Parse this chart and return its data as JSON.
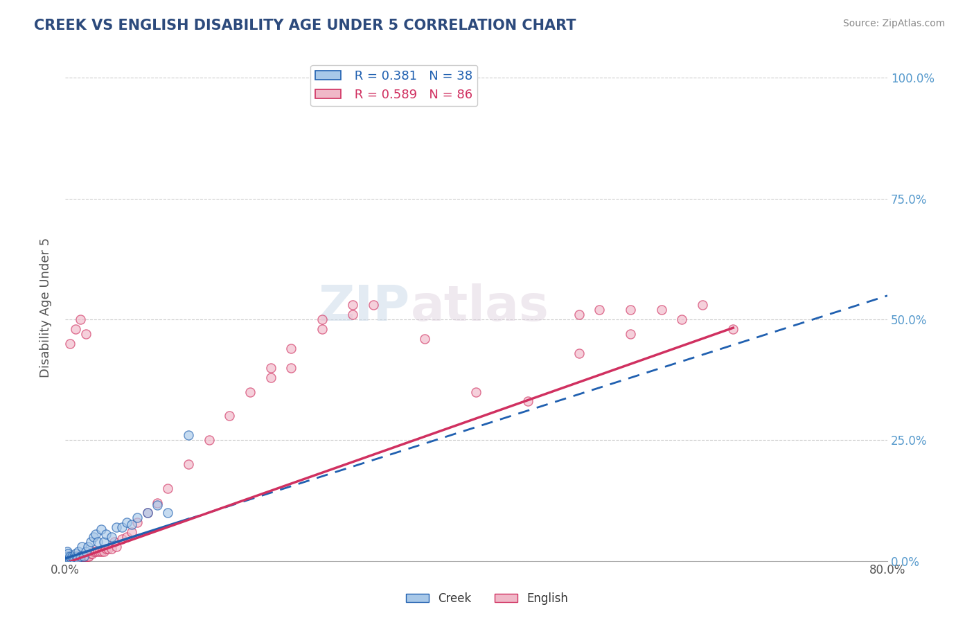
{
  "title": "CREEK VS ENGLISH DISABILITY AGE UNDER 5 CORRELATION CHART",
  "source": "Source: ZipAtlas.com",
  "ylabel": "Disability Age Under 5",
  "creek_R": 0.381,
  "creek_N": 38,
  "english_R": 0.589,
  "english_N": 86,
  "creek_color": "#a8c8e8",
  "creek_line_color": "#2060b0",
  "english_color": "#f0b8c8",
  "english_line_color": "#d03060",
  "title_color": "#2c4a7c",
  "watermark_zip": "ZIP",
  "watermark_atlas": "atlas",
  "creek_scatter_x": [
    0.001,
    0.001,
    0.002,
    0.002,
    0.003,
    0.003,
    0.004,
    0.005,
    0.006,
    0.007,
    0.008,
    0.009,
    0.01,
    0.011,
    0.012,
    0.013,
    0.015,
    0.016,
    0.018,
    0.02,
    0.022,
    0.025,
    0.028,
    0.03,
    0.032,
    0.035,
    0.038,
    0.04,
    0.045,
    0.05,
    0.055,
    0.06,
    0.065,
    0.07,
    0.08,
    0.09,
    0.1,
    0.12
  ],
  "creek_scatter_y": [
    0.005,
    0.01,
    0.005,
    0.02,
    0.01,
    0.015,
    0.005,
    0.01,
    0.005,
    0.01,
    0.005,
    0.01,
    0.015,
    0.01,
    0.005,
    0.02,
    0.01,
    0.03,
    0.01,
    0.02,
    0.03,
    0.04,
    0.05,
    0.055,
    0.04,
    0.065,
    0.04,
    0.055,
    0.05,
    0.07,
    0.07,
    0.08,
    0.075,
    0.09,
    0.1,
    0.115,
    0.1,
    0.26
  ],
  "english_scatter_x": [
    0.001,
    0.001,
    0.002,
    0.002,
    0.002,
    0.003,
    0.003,
    0.003,
    0.004,
    0.004,
    0.005,
    0.005,
    0.005,
    0.006,
    0.006,
    0.007,
    0.007,
    0.008,
    0.008,
    0.009,
    0.009,
    0.01,
    0.01,
    0.011,
    0.012,
    0.013,
    0.014,
    0.015,
    0.016,
    0.017,
    0.018,
    0.019,
    0.02,
    0.021,
    0.022,
    0.023,
    0.025,
    0.026,
    0.028,
    0.03,
    0.032,
    0.034,
    0.036,
    0.038,
    0.04,
    0.042,
    0.045,
    0.048,
    0.05,
    0.055,
    0.06,
    0.065,
    0.07,
    0.08,
    0.09,
    0.1,
    0.12,
    0.14,
    0.16,
    0.18,
    0.2,
    0.22,
    0.25,
    0.28,
    0.3,
    0.35,
    0.4,
    0.45,
    0.5,
    0.55,
    0.2,
    0.22,
    0.25,
    0.28,
    0.003,
    0.005,
    0.01,
    0.015,
    0.02,
    0.5,
    0.55,
    0.6,
    0.65,
    0.62,
    0.58,
    0.52
  ],
  "english_scatter_y": [
    0.005,
    0.01,
    0.005,
    0.01,
    0.005,
    0.005,
    0.01,
    0.005,
    0.005,
    0.01,
    0.005,
    0.01,
    0.005,
    0.01,
    0.005,
    0.01,
    0.005,
    0.01,
    0.005,
    0.01,
    0.005,
    0.01,
    0.005,
    0.01,
    0.01,
    0.01,
    0.01,
    0.01,
    0.01,
    0.01,
    0.01,
    0.01,
    0.01,
    0.01,
    0.01,
    0.01,
    0.015,
    0.015,
    0.02,
    0.02,
    0.02,
    0.02,
    0.02,
    0.02,
    0.025,
    0.025,
    0.025,
    0.04,
    0.03,
    0.045,
    0.05,
    0.06,
    0.08,
    0.1,
    0.12,
    0.15,
    0.2,
    0.25,
    0.3,
    0.35,
    0.4,
    0.44,
    0.48,
    0.51,
    0.53,
    0.46,
    0.35,
    0.33,
    0.43,
    0.47,
    0.38,
    0.4,
    0.5,
    0.53,
    0.005,
    0.45,
    0.48,
    0.5,
    0.47,
    0.51,
    0.52,
    0.5,
    0.48,
    0.53,
    0.52,
    0.52
  ],
  "xlim": [
    0.0,
    0.8
  ],
  "ylim": [
    0.0,
    1.05
  ],
  "ytick_vals": [
    0.0,
    0.25,
    0.5,
    0.75,
    1.0
  ],
  "ytick_labels_right": [
    "0.0%",
    "25.0%",
    "50.0%",
    "75.0%",
    "100.0%"
  ]
}
